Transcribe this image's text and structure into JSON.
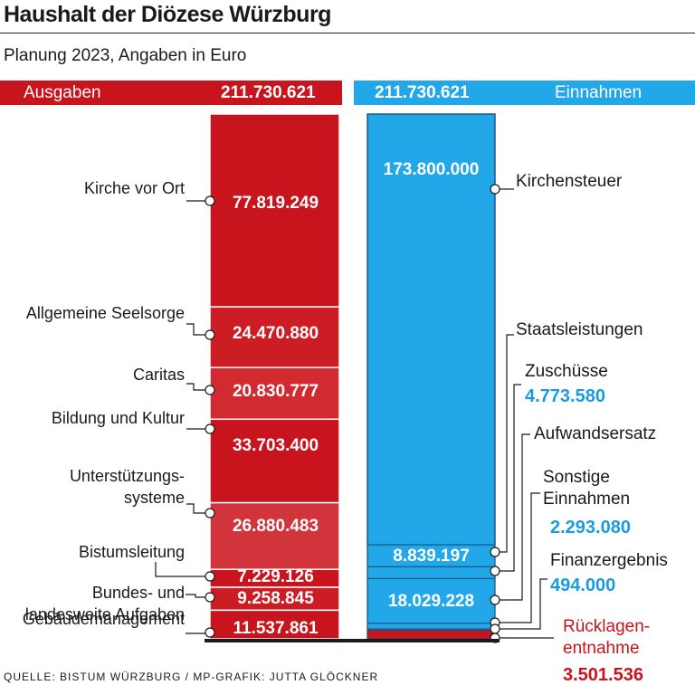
{
  "title": "Haushalt der Diözese Würzburg",
  "subtitle": "Planung 2023, Angaben in Euro",
  "source": "QUELLE: BISTUM WÜRZBURG  / MP-GRAFIK: JUTTA GLÖCKNER",
  "colors": {
    "expense": "#c8141c",
    "income": "#22a7e8",
    "income_label": "#1a9be0",
    "withdrawal_label": "#c8141c"
  },
  "chart_data": {
    "type": "bar",
    "stacked": true,
    "series": [
      {
        "name": "Ausgaben",
        "total": "211.730.621",
        "segments": [
          {
            "label": "Kirche vor Ort",
            "value": 77819249,
            "value_text": "77.819.249"
          },
          {
            "label": "Allgemeine Seelsorge",
            "value": 24470880,
            "value_text": "24.470.880"
          },
          {
            "label": "Caritas",
            "value": 20830777,
            "value_text": "20.830.777"
          },
          {
            "label": "Bildung und Kultur",
            "value": 33703400,
            "value_text": "33.703.400"
          },
          {
            "label": "Unterstützungs-\nsysteme",
            "value": 26880483,
            "value_text": "26.880.483"
          },
          {
            "label": "Bistumsleitung",
            "value": 7229126,
            "value_text": "7.229.126"
          },
          {
            "label": "Bundes- und\nlandesweite Aufgaben",
            "value": 9258845,
            "value_text": "9.258.845"
          },
          {
            "label": "Gebäudemanagement",
            "value": 11537861,
            "value_text": "11.537.861"
          }
        ]
      },
      {
        "name": "Einnahmen",
        "total": "211.730.621",
        "segments": [
          {
            "label": "Kirchensteuer",
            "value": 173800000,
            "value_text": "173.800.000"
          },
          {
            "label": "Staatsleistungen",
            "value": 8839197,
            "value_text": "8.839.197"
          },
          {
            "label": "Zuschüsse",
            "value": 4773580,
            "value_text": "4.773.580"
          },
          {
            "label": "Aufwandsersatz",
            "value": 18029228,
            "value_text": "18.029.228"
          },
          {
            "label": "Sonstige\nEinnahmen",
            "value": 2293080,
            "value_text": "2.293.080"
          },
          {
            "label": "Finanzergebnis",
            "value": 494000,
            "value_text": "494.000"
          },
          {
            "label": "Rücklagen-\nentnahme",
            "value": 3501536,
            "value_text": "3.501.536"
          }
        ]
      }
    ]
  }
}
